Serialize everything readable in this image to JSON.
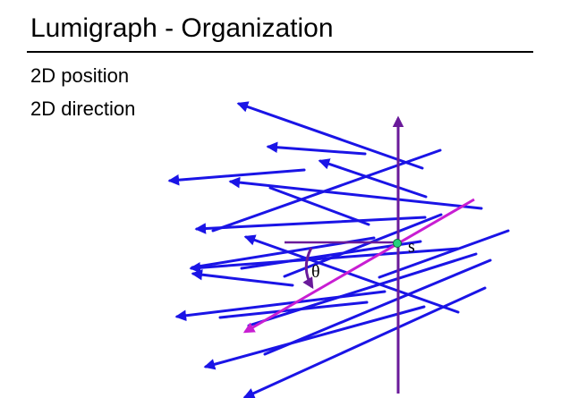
{
  "slide": {
    "title": "Lumigraph - Organization",
    "bullets": [
      "2D position",
      "2D direction"
    ]
  },
  "diagram": {
    "point_label": "s",
    "angle_label": "θ",
    "colors": {
      "rays": "#1a14e6",
      "axis": "#6a1a9a",
      "highlight_ray": "#c81ed2",
      "point_fill": "#26d07c"
    }
  }
}
